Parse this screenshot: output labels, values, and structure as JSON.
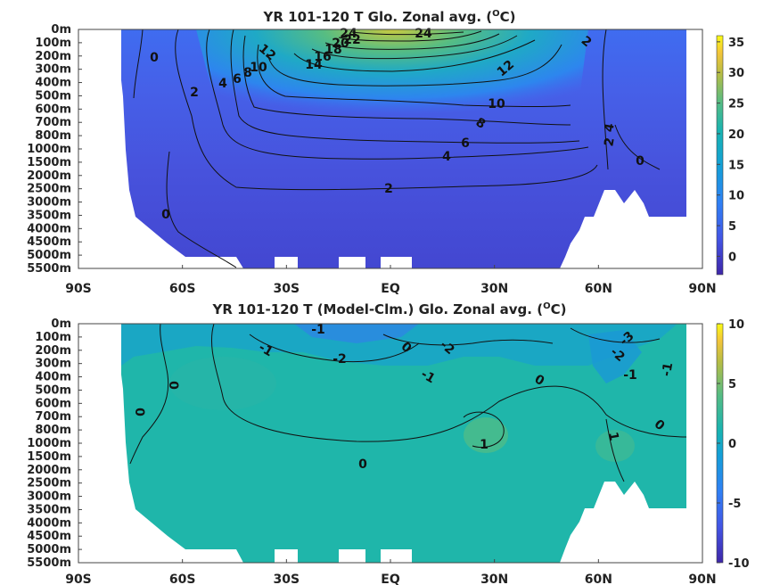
{
  "chart_data": [
    {
      "type": "heatmap",
      "title": "YR 101-120 T Glo. Zonal avg. (°C)",
      "title_parts": [
        "YR 101-120 T Glo. Zonal avg. (",
        "O",
        "C)"
      ],
      "x_ticks": [
        "90S",
        "60S",
        "30S",
        "EQ",
        "30N",
        "60N",
        "90N"
      ],
      "x_values": [
        -90,
        -60,
        -30,
        0,
        30,
        60,
        90
      ],
      "y_ticks": [
        "0m",
        "100m",
        "200m",
        "300m",
        "400m",
        "500m",
        "600m",
        "700m",
        "800m",
        "1000m",
        "1500m",
        "2000m",
        "2500m",
        "3000m",
        "3500m",
        "4000m",
        "4500m",
        "5000m",
        "5500m"
      ],
      "colorbar": {
        "ticks": [
          "35",
          "30",
          "25",
          "20",
          "15",
          "10",
          "5",
          "0"
        ],
        "range": [
          -3,
          36
        ],
        "colormap": "parula"
      },
      "contour_labels": [
        "0",
        "2",
        "4",
        "6",
        "8",
        "10",
        "12",
        "14",
        "16",
        "18",
        "20",
        "22",
        "24",
        "24",
        "12",
        "10",
        "8",
        "6",
        "4",
        "2",
        "2",
        "0",
        "2",
        "4",
        "0",
        "2"
      ],
      "key_isotherms_degC": [
        0,
        2,
        4,
        6,
        8,
        10,
        12,
        14,
        16,
        18,
        20,
        22,
        24
      ]
    },
    {
      "type": "heatmap",
      "title": "YR 101-120 T (Model-Clm.) Glo. Zonal avg. (°C)",
      "title_parts": [
        "YR 101-120 T (Model-Clm.) Glo. Zonal avg. (",
        "O",
        "C)"
      ],
      "x_ticks": [
        "90S",
        "60S",
        "30S",
        "EQ",
        "30N",
        "60N",
        "90N"
      ],
      "x_values": [
        -90,
        -60,
        -30,
        0,
        30,
        60,
        90
      ],
      "y_ticks": [
        "0m",
        "100m",
        "200m",
        "300m",
        "400m",
        "500m",
        "600m",
        "700m",
        "800m",
        "1000m",
        "1500m",
        "2000m",
        "2500m",
        "3000m",
        "3500m",
        "4000m",
        "4500m",
        "5000m",
        "5500m"
      ],
      "colorbar": {
        "ticks": [
          "10",
          "5",
          "0",
          "-5",
          "-10"
        ],
        "range": [
          -10,
          10
        ],
        "colormap": "parula"
      },
      "contour_labels": [
        "-1",
        "-1",
        "-2",
        "0",
        "-2",
        "-3",
        "-2",
        "-1",
        "-1",
        "0",
        "0",
        "0",
        "0",
        "1",
        "1",
        "0",
        "0"
      ]
    }
  ]
}
